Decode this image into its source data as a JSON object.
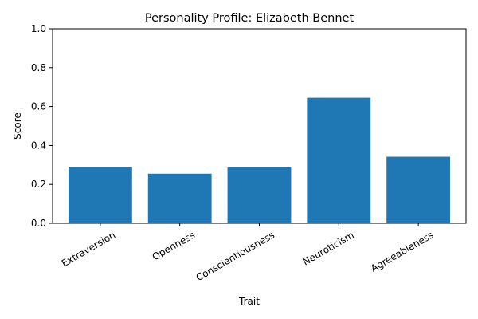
{
  "chart_data": {
    "type": "bar",
    "title": "Personality Profile: Elizabeth Bennet",
    "xlabel": "Trait",
    "ylabel": "Score",
    "categories": [
      "Extraversion",
      "Openness",
      "Conscientiousness",
      "Neuroticism",
      "Agreeableness"
    ],
    "values": [
      0.29,
      0.255,
      0.288,
      0.645,
      0.342
    ],
    "ylim": [
      0,
      1
    ],
    "yticks": [
      "0.0",
      "0.2",
      "0.4",
      "0.6",
      "0.8",
      "1.0"
    ],
    "bar_color": "#1f77b4",
    "grid": false,
    "legend": "none"
  }
}
